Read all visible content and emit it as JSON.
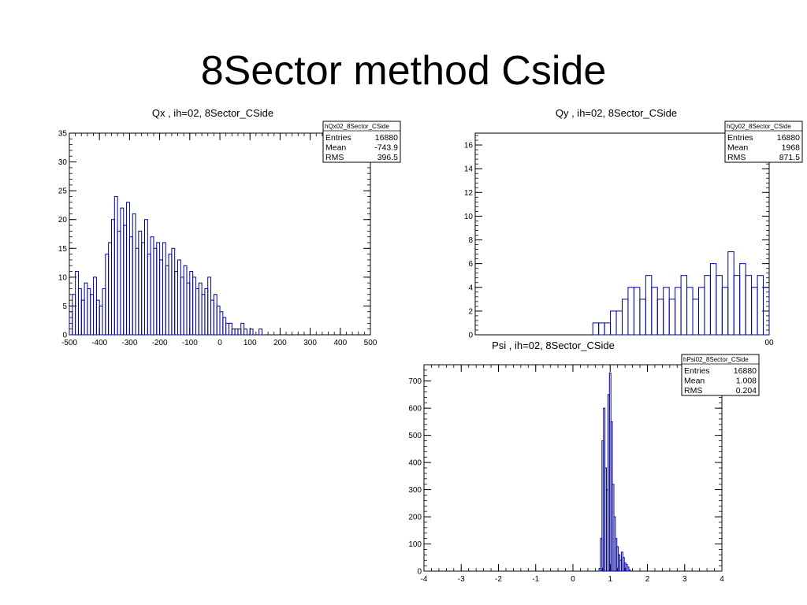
{
  "slide": {
    "title": "8Sector method Cside"
  },
  "chart_data": [
    {
      "type": "histogram",
      "title": "Qx , ih=02, 8Sector_CSide",
      "stats": {
        "name": "hQx02_8Sector_CSide",
        "entries_label": "Entries",
        "entries": "16880",
        "mean_label": "Mean",
        "mean": "-743.9",
        "rms_label": "RMS",
        "rms": "396.5"
      },
      "xlim": [
        -500,
        500
      ],
      "ylim": [
        0,
        35
      ],
      "xticks": [
        -500,
        -400,
        -300,
        -200,
        -100,
        0,
        100,
        200,
        300,
        400,
        500
      ],
      "yticks": [
        0,
        5,
        10,
        15,
        20,
        25,
        30,
        35
      ],
      "x": [
        -495,
        -485,
        -475,
        -465,
        -455,
        -445,
        -435,
        -425,
        -415,
        -405,
        -395,
        -385,
        -375,
        -365,
        -355,
        -345,
        -335,
        -325,
        -315,
        -305,
        -295,
        -285,
        -275,
        -265,
        -255,
        -245,
        -235,
        -225,
        -215,
        -205,
        -195,
        -185,
        -175,
        -165,
        -155,
        -145,
        -135,
        -125,
        -115,
        -105,
        -95,
        -85,
        -75,
        -65,
        -55,
        -45,
        -35,
        -25,
        -15,
        -5,
        5,
        15,
        25,
        35,
        45,
        55,
        65,
        75,
        85,
        95,
        105,
        115,
        125,
        135
      ],
      "values": [
        4,
        7,
        11,
        8,
        6,
        9,
        8,
        7,
        10,
        6,
        5,
        8,
        14,
        16,
        20,
        24,
        18,
        22,
        19,
        23,
        17,
        21,
        15,
        18,
        16,
        20,
        14,
        17,
        15,
        16,
        13,
        16,
        12,
        14,
        15,
        11,
        13,
        10,
        12,
        9,
        11,
        10,
        8,
        9,
        7,
        8,
        10,
        6,
        7,
        5,
        4,
        3,
        2,
        2,
        1,
        1,
        1,
        2,
        1,
        0,
        1,
        0,
        0,
        1
      ],
      "series_color": "#000099"
    },
    {
      "type": "histogram",
      "title": "Qy , ih=02, 8Sector_CSide",
      "stats": {
        "name": "hQy02_8Sector_CSide",
        "entries_label": "Entries",
        "entries": "16880",
        "mean_label": "Mean",
        "mean": "1968",
        "rms_label": "RMS",
        "rms": "871.5"
      },
      "xlim": [
        0,
        500
      ],
      "ylim": [
        0,
        17
      ],
      "yticks": [
        0,
        2,
        4,
        6,
        8,
        10,
        12,
        14,
        16
      ],
      "x_tick_visible": "00",
      "x": [
        205,
        215,
        225,
        235,
        245,
        255,
        265,
        275,
        285,
        295,
        305,
        315,
        325,
        335,
        345,
        355,
        365,
        375,
        385,
        395,
        405,
        415,
        425,
        435,
        445,
        455,
        465,
        475,
        485,
        495
      ],
      "values": [
        1,
        1,
        1,
        2,
        2,
        3,
        4,
        4,
        3,
        5,
        4,
        3,
        4,
        3,
        4,
        5,
        4,
        3,
        4,
        5,
        6,
        5,
        4,
        7,
        5,
        6,
        5,
        4,
        5,
        4
      ],
      "series_color": "#000099"
    },
    {
      "type": "histogram",
      "title": "Psi , ih=02, 8Sector_CSide",
      "stats": {
        "name": "hPsi02_8Sector_CSide",
        "entries_label": "Entries",
        "entries": "16880",
        "mean_label": "Mean",
        "mean": "1.008",
        "rms_label": "RMS",
        "rms": "0.204"
      },
      "xlim": [
        -4,
        4
      ],
      "ylim": [
        0,
        760
      ],
      "xticks": [
        -4,
        -3,
        -2,
        -1,
        0,
        1,
        2,
        3,
        4
      ],
      "yticks": [
        0,
        100,
        200,
        300,
        400,
        500,
        600,
        700
      ],
      "x": [
        0.72,
        0.76,
        0.8,
        0.84,
        0.88,
        0.92,
        0.96,
        1.0,
        1.04,
        1.08,
        1.12,
        1.16,
        1.2,
        1.24,
        1.28,
        1.32,
        1.36,
        1.4,
        1.44,
        1.48,
        1.52
      ],
      "values": [
        10,
        120,
        480,
        600,
        380,
        300,
        650,
        730,
        550,
        320,
        200,
        120,
        90,
        60,
        40,
        70,
        50,
        30,
        25,
        15,
        5
      ],
      "series_color": "#000099"
    }
  ]
}
